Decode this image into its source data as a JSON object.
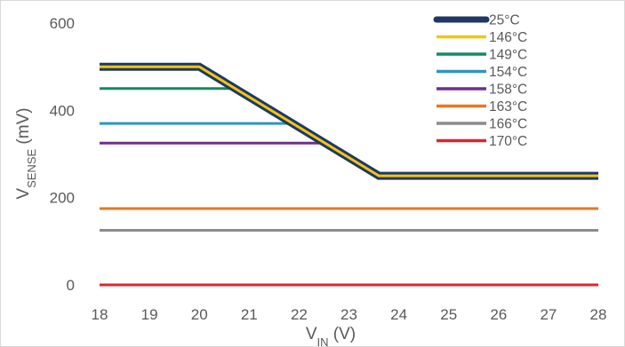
{
  "chart_data": {
    "type": "line",
    "title": "",
    "xlabel": {
      "main": "V",
      "sub": "IN",
      "unit": " (V)"
    },
    "ylabel": {
      "main": "V",
      "sub": "SENSE",
      "unit": " (mV)"
    },
    "xlim": [
      18,
      28
    ],
    "ylim": [
      0,
      600
    ],
    "xticks": [
      18,
      19,
      20,
      21,
      22,
      23,
      24,
      25,
      26,
      27,
      28
    ],
    "yticks": [
      0,
      200,
      400,
      600
    ],
    "grid": false,
    "legend_position": "top-right",
    "series": [
      {
        "name": "25°C",
        "color": "#1f3864",
        "x": [
          18,
          20,
          23.6,
          28
        ],
        "y": [
          500,
          500,
          250,
          250
        ]
      },
      {
        "name": "146°C",
        "color": "#f2c511",
        "x": [
          18,
          20,
          23.6,
          28
        ],
        "y": [
          500,
          500,
          250,
          250
        ]
      },
      {
        "name": "149°C",
        "color": "#148a66",
        "x": [
          18,
          20.5,
          20.7,
          23.6,
          28
        ],
        "y": [
          450,
          450,
          450,
          250,
          250
        ]
      },
      {
        "name": "154°C",
        "color": "#2f95c0",
        "x": [
          18,
          21.8,
          23.6,
          28
        ],
        "y": [
          370,
          370,
          250,
          250
        ]
      },
      {
        "name": "158°C",
        "color": "#6d2f91",
        "x": [
          18,
          22.5,
          23.6,
          28
        ],
        "y": [
          325,
          325,
          250,
          250
        ]
      },
      {
        "name": "163°C",
        "color": "#e87722",
        "x": [
          18,
          28
        ],
        "y": [
          175,
          175
        ]
      },
      {
        "name": "166°C",
        "color": "#8c8c8c",
        "x": [
          18,
          28
        ],
        "y": [
          125,
          125
        ]
      },
      {
        "name": "170°C",
        "color": "#d9262e",
        "x": [
          18,
          28
        ],
        "y": [
          0,
          0
        ]
      }
    ]
  }
}
